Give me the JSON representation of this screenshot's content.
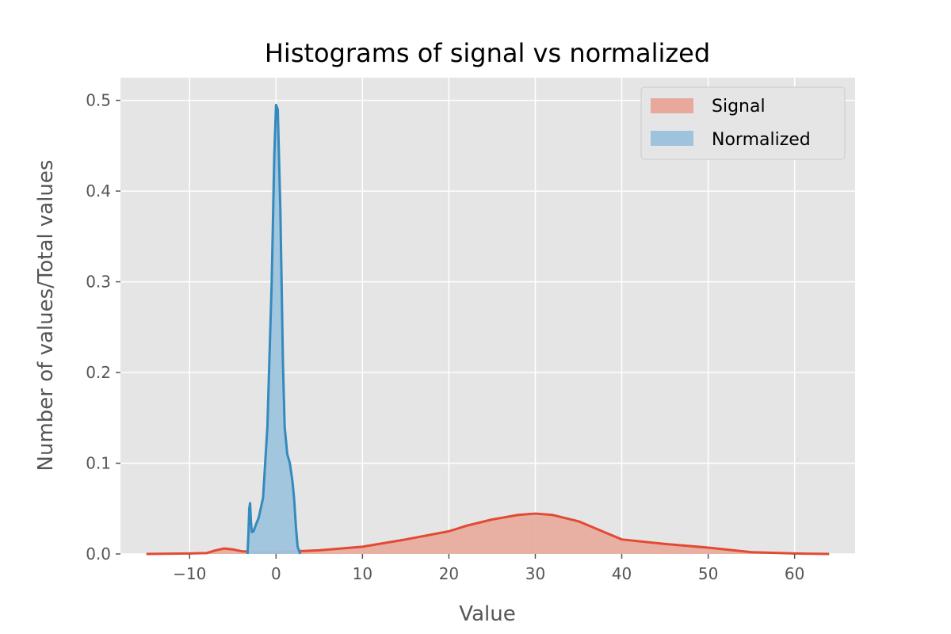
{
  "chart_data": {
    "type": "area",
    "title": "Histograms of signal vs normalized",
    "xlabel": "Value",
    "ylabel": "Number of values/Total values",
    "xlim": [
      -18,
      67
    ],
    "ylim": [
      0,
      0.525
    ],
    "xticks": [
      -10,
      0,
      10,
      20,
      30,
      40,
      50,
      60
    ],
    "yticks": [
      0.0,
      0.1,
      0.2,
      0.3,
      0.4,
      0.5
    ],
    "xtick_labels": [
      "−10",
      "0",
      "10",
      "20",
      "30",
      "40",
      "50",
      "60"
    ],
    "ytick_labels": [
      "0.0",
      "0.1",
      "0.2",
      "0.3",
      "0.4",
      "0.5"
    ],
    "grid": true,
    "legend": {
      "placement": "top-right"
    },
    "colors": {
      "background": "#e5e5e5",
      "grid": "#ffffff",
      "signal_line": "#e24a33",
      "signal_fill": "#e8a89b",
      "normalized_line": "#348abd",
      "normalized_fill": "#9ec4dd"
    },
    "series": [
      {
        "name": "Signal",
        "x": [
          -15,
          -10,
          -8,
          -7,
          -6,
          -5,
          -4,
          -3,
          -2,
          0,
          5,
          10,
          15,
          20,
          22,
          25,
          28,
          30,
          32,
          35,
          38,
          40,
          45,
          50,
          55,
          60,
          64
        ],
        "y": [
          0.0,
          0.0005,
          0.001,
          0.004,
          0.006,
          0.005,
          0.003,
          0.0025,
          0.002,
          0.002,
          0.004,
          0.008,
          0.016,
          0.025,
          0.031,
          0.038,
          0.043,
          0.0445,
          0.043,
          0.036,
          0.024,
          0.016,
          0.011,
          0.007,
          0.002,
          0.0005,
          0.0
        ]
      },
      {
        "name": "Normalized",
        "x": [
          -3.3,
          -3.2,
          -3.1,
          -3.0,
          -2.9,
          -2.8,
          -2.6,
          -2.3,
          -2.0,
          -1.5,
          -1.0,
          -0.5,
          -0.2,
          0.0,
          0.2,
          0.5,
          0.8,
          1.0,
          1.3,
          1.6,
          1.9,
          2.1,
          2.3,
          2.5,
          2.8
        ],
        "y": [
          0.0,
          0.02,
          0.05,
          0.056,
          0.035,
          0.024,
          0.025,
          0.033,
          0.04,
          0.062,
          0.14,
          0.3,
          0.44,
          0.495,
          0.49,
          0.38,
          0.21,
          0.14,
          0.11,
          0.1,
          0.08,
          0.06,
          0.03,
          0.008,
          0.0
        ]
      }
    ]
  }
}
